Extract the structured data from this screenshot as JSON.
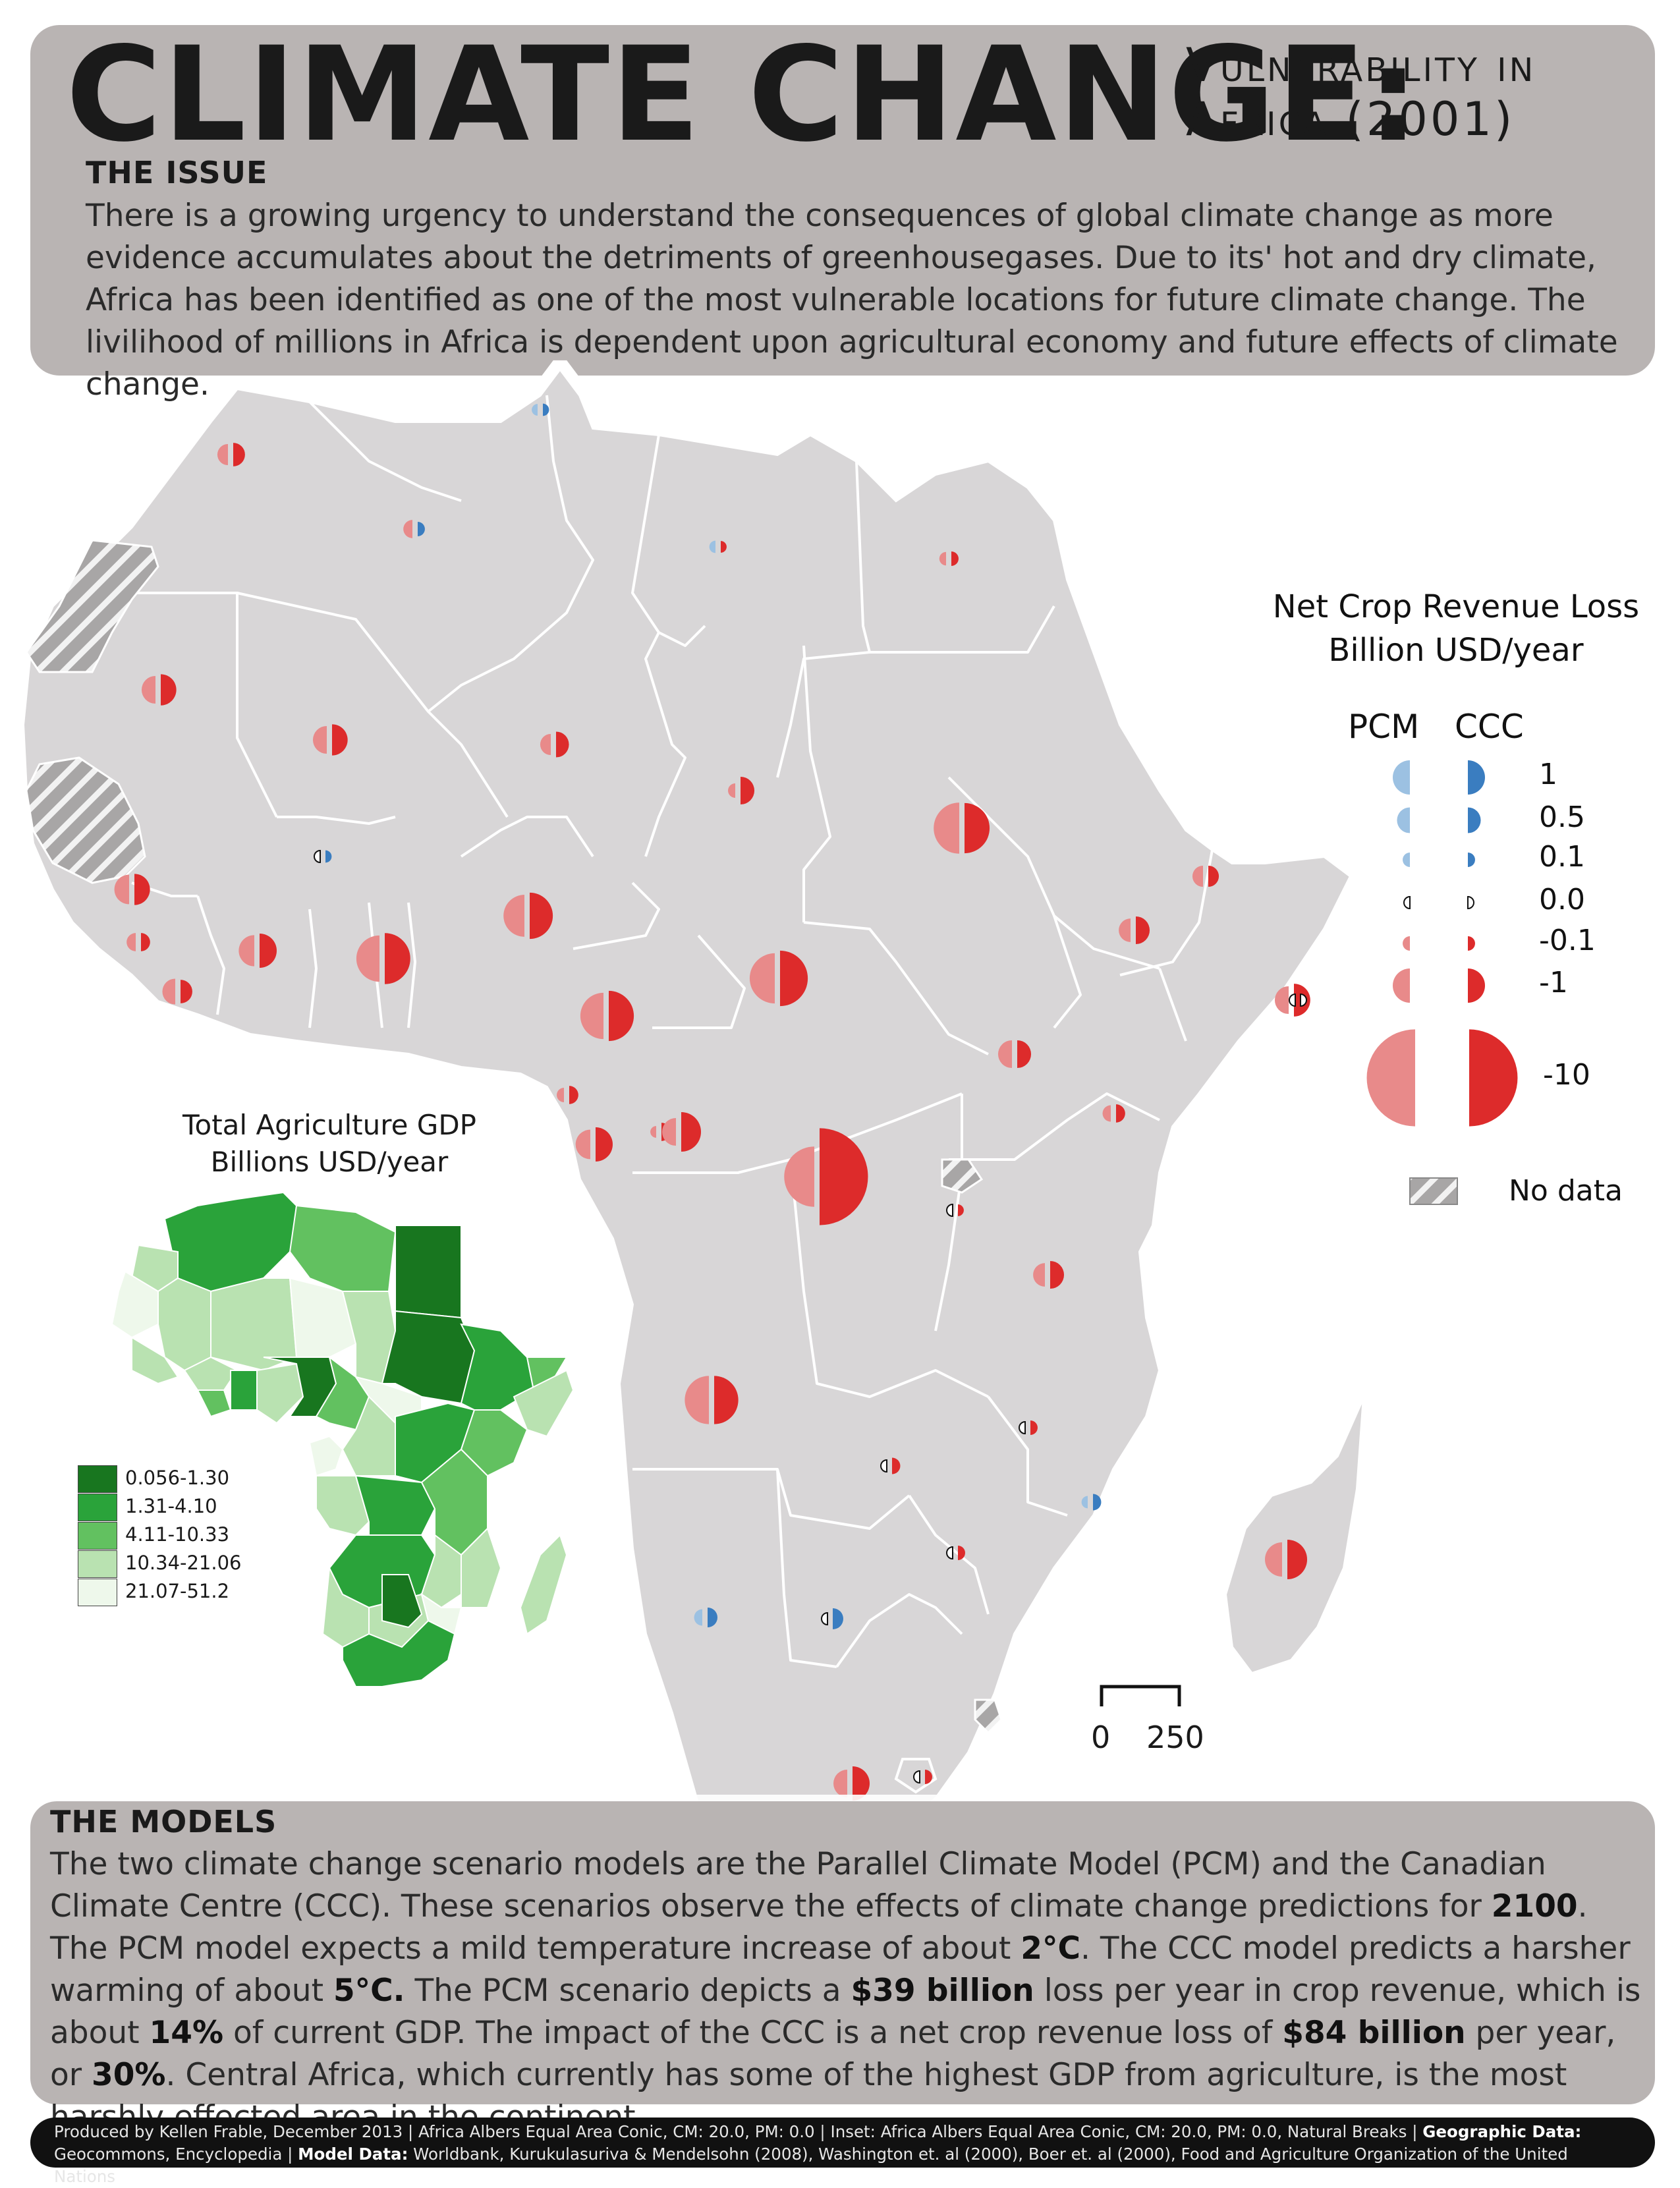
{
  "header": {
    "title": "CLIMATE CHANGE:",
    "subtitle_line1": "Vulnerability in",
    "subtitle_line2": "Africa (2001)"
  },
  "issue": {
    "heading": "THE ISSUE",
    "text": "There is a growing urgency to understand the consequences of global climate change as more evidence accumulates about the detriments of greenhousegases. Due to its' hot and dry climate, Africa has been identified as one of the most vulnerable locations for future climate change. The livilihood of millions in Africa is dependent upon agricultural economy and future effects of climate change."
  },
  "legend": {
    "title_line1": "Net Crop Revenue Loss",
    "title_line2": "Billion USD/year",
    "col_pcm": "PCM",
    "col_ccc": "CCC",
    "classes": [
      {
        "label": "1",
        "value": 1,
        "sign": "gain"
      },
      {
        "label": "0.5",
        "value": 0.5,
        "sign": "gain"
      },
      {
        "label": "0.1",
        "value": 0.1,
        "sign": "gain"
      },
      {
        "label": "0.0",
        "value": 0.0,
        "sign": "zero"
      },
      {
        "label": "-0.1",
        "value": -0.1,
        "sign": "loss"
      },
      {
        "label": "-1",
        "value": -1,
        "sign": "loss"
      },
      {
        "label": "-10",
        "value": -10,
        "sign": "loss"
      }
    ],
    "no_data_label": "No data",
    "colors": {
      "pcm_loss": "#e88a8a",
      "ccc_loss": "#dd2b2b",
      "pcm_gain": "#9cc1e2",
      "ccc_gain": "#3a7dc0",
      "land": "#d8d6d7",
      "border": "#ffffff",
      "no_data": "#a8a6a6"
    }
  },
  "gdp_inset": {
    "title_line1": "Total Agriculture GDP",
    "title_line2": "Billions USD/year",
    "classes": [
      {
        "label": "0.056-1.30",
        "color": "#18761f"
      },
      {
        "label": "1.31-4.10",
        "color": "#2aa33a"
      },
      {
        "label": "4.11-10.33",
        "color": "#62c160"
      },
      {
        "label": "10.34-21.06",
        "color": "#b9e2b1"
      },
      {
        "label": "21.07-51.2",
        "color": "#eef8eb"
      }
    ]
  },
  "scale_bar": {
    "zero": "0",
    "max": "250"
  },
  "models": {
    "heading": "THE MODELS",
    "text_part1": "The two climate change scenario models are the Parallel Climate Model (PCM) and the Canadian Climate Centre (CCC). These scenarios observe the effects of climate change predictions for ",
    "year": "2100",
    "text_part2": ". The PCM model expects a mild temperature increase of about ",
    "pcm_temp": "2°C",
    "text_part3": ". The CCC model predicts a harsher warming of about ",
    "ccc_temp": "5°C.",
    "text_part4": " The PCM scenario depicts a ",
    "pcm_loss": "$39 billion",
    "text_part5": " loss per year in crop revenue, which is about ",
    "pcm_pct": "14%",
    "text_part6": " of current GDP. The impact of the CCC is a net crop revenue loss of ",
    "ccc_loss": "$84 billion",
    "text_part7": " per year, or ",
    "ccc_pct": "30%",
    "text_part8": ". Central Africa, which currently has some of the highest GDP from agriculture, is the most harshly effected area in the continent."
  },
  "footer": {
    "credit": "Produced by Kellen Frable, December 2013 | Africa Albers Equal Area Conic, CM: 20.0, PM: 0.0 | Inset: Africa Albers Equal Area Conic, CM: 20.0, PM: 0.0, Natural Breaks | ",
    "geo_label": "Geographic Data:",
    "geo_sources": " Geocommons, Encyclopedia | ",
    "model_label": "Model Data:",
    "model_sources": " Worldbank, Kurukulasuriva & Mendelsohn (2008), Washington et. al (2000), Boer et. al (2000), Food and Agriculture Organization of the United Nations"
  },
  "map_symbols": [
    {
      "pcm": -0.3,
      "ccc": -0.4
    },
    {
      "pcm": 0.05,
      "ccc": 0.06
    },
    {
      "pcm": -0.2,
      "ccc": 0.1
    },
    {
      "pcm": 0.06,
      "ccc": -0.05
    },
    {
      "pcm": -0.08,
      "ccc": -0.1
    },
    {
      "pcm": -0.6,
      "ccc": -0.8
    },
    {
      "pcm": -0.6,
      "ccc": -0.8
    },
    {
      "pcm": -0.3,
      "ccc": -0.5
    },
    {
      "pcm": -0.1,
      "ccc": -0.6
    },
    {
      "pcm": -2.5,
      "ccc": -2.4
    },
    {
      "pcm": 0.0,
      "ccc": 0.06
    },
    {
      "pcm": -0.3,
      "ccc": -0.3
    },
    {
      "pcm": -0.4,
      "ccc": -0.6
    },
    {
      "pcm": -0.7,
      "ccc": -0.8
    },
    {
      "pcm": -1.6,
      "ccc": -2.0
    },
    {
      "pcm": -0.6,
      "ccc": -0.9
    },
    {
      "pcm": -0.2,
      "ccc": -0.2
    },
    {
      "pcm": -0.8,
      "ccc": -1.0
    },
    {
      "pcm": -2.0,
      "ccc": -2.5
    },
    {
      "pcm": -0.5,
      "ccc": -0.4
    },
    {
      "pcm": -2.0,
      "ccc": -2.4
    },
    {
      "pcm": -2.4,
      "ccc": -3.0
    },
    {
      "pcm": 0.0,
      "ccc": 0.0
    },
    {
      "pcm": -0.6,
      "ccc": -0.6
    },
    {
      "pcm": -0.1,
      "ccc": -0.2
    },
    {
      "pcm": -0.15,
      "ccc": -0.2
    },
    {
      "pcm": -0.7,
      "ccc": -1.0
    },
    {
      "pcm": -0.05,
      "ccc": -0.2
    },
    {
      "pcm": -0.6,
      "ccc": -1.4
    },
    {
      "pcm": -3.6,
      "ccc": -10.0
    },
    {
      "pcm": 0.0,
      "ccc": -0.05
    },
    {
      "pcm": -0.4,
      "ccc": -0.6
    },
    {
      "pcm": -2.2,
      "ccc": -2.2
    },
    {
      "pcm": 0.0,
      "ccc": -0.1
    },
    {
      "pcm": 0.0,
      "ccc": -0.15
    },
    {
      "pcm": 0.06,
      "ccc": 0.15
    },
    {
      "pcm": 0.0,
      "ccc": -0.1
    },
    {
      "pcm": 0.15,
      "ccc": 0.25
    },
    {
      "pcm": 0.0,
      "ccc": 0.3
    },
    {
      "pcm": -1.0,
      "ccc": -1.4
    },
    {
      "pcm": -0.6,
      "ccc": -1.0
    },
    {
      "pcm": 0.0,
      "ccc": -0.1
    }
  ]
}
